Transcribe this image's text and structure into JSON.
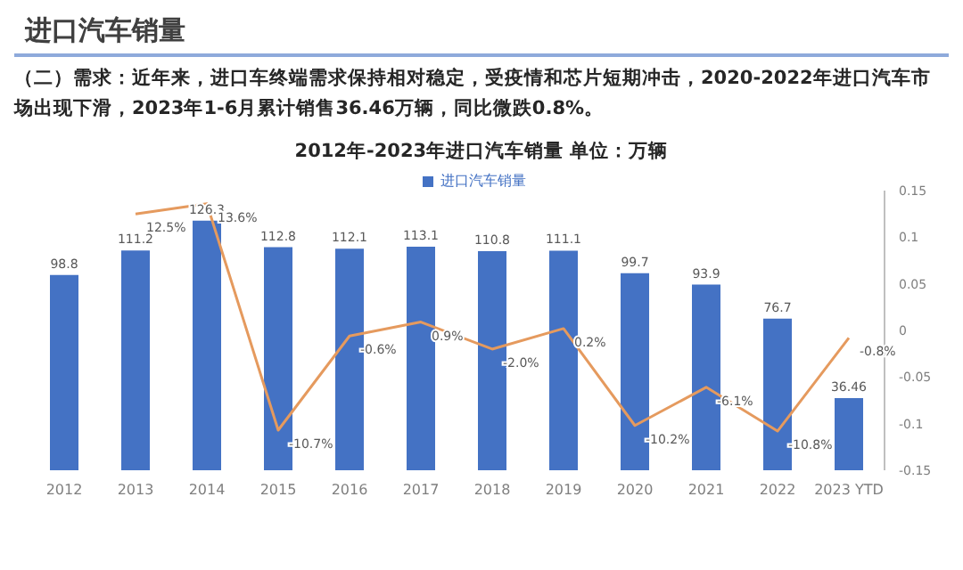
{
  "chart_data": {
    "type": "bar",
    "title": "2012年-2023年进口汽车销量  单位：万辆",
    "annotations": [
      "进口汽车销量",
      "（二）需求：近年来，进口车终端需求保持相对稳定，受疫情和芯片短期冲击，2020-2022年进口汽车市场出现下滑，2023年1-6月累计销售36.46万辆，同比微跌0.8%。"
    ],
    "categories": [
      "2012",
      "2013",
      "2014",
      "2015",
      "2016",
      "2017",
      "2018",
      "2019",
      "2020",
      "2021",
      "2022",
      "2023 YTD"
    ],
    "series": [
      {
        "name": "进口汽车销量",
        "color": "#4472c4",
        "values": [
          98.8,
          111.2,
          126.3,
          112.8,
          112.1,
          113.1,
          110.8,
          111.1,
          99.7,
          93.9,
          76.7,
          36.46
        ],
        "value_labels": [
          "98.8",
          "111.2",
          "126.3",
          "112.8",
          "112.1",
          "113.1",
          "110.8",
          "111.1",
          "99.7",
          "93.9",
          "76.7",
          "36.46"
        ]
      },
      {
        "type": "line",
        "axis": "y2",
        "color": "#e59a5e",
        "values": [
          null,
          0.125,
          0.136,
          -0.107,
          -0.006,
          0.009,
          -0.02,
          0.002,
          -0.102,
          -0.061,
          -0.108,
          -0.008
        ],
        "value_labels": [
          null,
          "12.5%",
          "13.6%",
          "-10.7%",
          "-0.6%",
          "0.9%",
          "-2.0%",
          "0.2%",
          "-10.2%",
          "-6.1%",
          "-10.8%",
          "-0.8%"
        ]
      }
    ],
    "y2lim": [
      -0.15,
      0.15
    ],
    "y2ticks": [
      -0.15,
      -0.1,
      -0.05,
      0,
      0.05,
      0.1,
      0.15
    ],
    "legend": "top",
    "grid": false
  }
}
